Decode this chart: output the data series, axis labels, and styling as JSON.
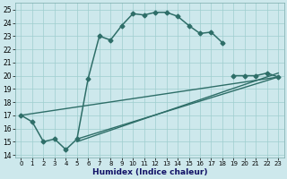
{
  "xlabel": "Humidex (Indice chaleur)",
  "bg_color": "#cde8ec",
  "line_color": "#2e6e68",
  "grid_color": "#9ecece",
  "xlim": [
    -0.5,
    23.5
  ],
  "ylim": [
    13.8,
    25.5
  ],
  "yticks": [
    14,
    15,
    16,
    17,
    18,
    19,
    20,
    21,
    22,
    23,
    24,
    25
  ],
  "xticks": [
    0,
    1,
    2,
    3,
    4,
    5,
    6,
    7,
    8,
    9,
    10,
    11,
    12,
    13,
    14,
    15,
    16,
    17,
    18,
    19,
    20,
    21,
    22,
    23
  ],
  "series1_x": [
    0,
    1,
    2,
    3,
    4,
    5,
    6,
    7,
    8,
    9,
    10,
    11,
    12,
    13,
    14,
    15,
    16,
    17,
    18
  ],
  "series1_y": [
    17.0,
    16.5,
    15.0,
    15.2,
    14.4,
    15.2,
    19.8,
    23.0,
    22.7,
    23.8,
    24.7,
    24.6,
    24.8,
    24.8,
    24.5,
    23.8,
    23.2,
    23.3,
    22.5
  ],
  "series2_x": [
    19,
    20,
    21,
    22,
    23
  ],
  "series2_y": [
    20.0,
    20.0,
    20.0,
    20.2,
    19.9
  ],
  "line1_x": [
    5,
    23
  ],
  "line1_y": [
    15.2,
    19.9
  ],
  "line2_x": [
    5,
    23
  ],
  "line2_y": [
    15.0,
    20.2
  ],
  "line3_x": [
    0,
    23
  ],
  "line3_y": [
    17.0,
    19.9
  ],
  "xlabel_fontsize": 6.5,
  "xlabel_color": "#111166",
  "tick_fontsize": 5.5,
  "linewidth": 1.1,
  "markersize": 2.5
}
